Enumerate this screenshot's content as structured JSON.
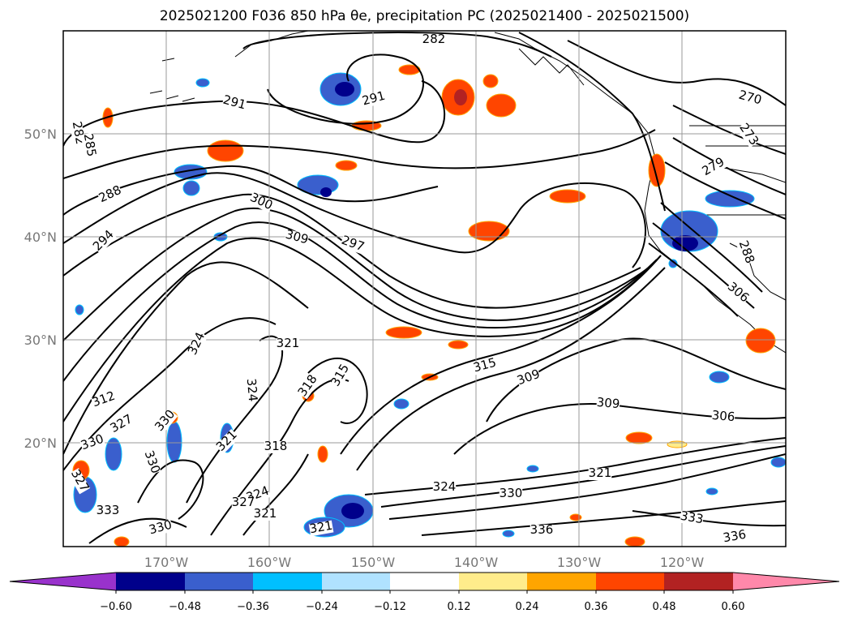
{
  "title": "2025021200 F036 850 hPa θe, precipitation PC (2025021400 - 2025021500)",
  "map": {
    "lon_range": [
      -180,
      -110
    ],
    "lat_range": [
      10,
      60
    ],
    "lat_ticks": [
      "50°N",
      "40°N",
      "30°N",
      "20°N"
    ],
    "lon_ticks": [
      "170°W",
      "160°W",
      "150°W",
      "140°W",
      "130°W",
      "120°W"
    ],
    "grid": true,
    "contour_labels": [
      "282",
      "291",
      "291",
      "282",
      "285",
      "288",
      "294",
      "300",
      "309",
      "297",
      "270",
      "273",
      "279",
      "288",
      "306",
      "324",
      "321",
      "324",
      "318",
      "312",
      "315",
      "327",
      "315",
      "309",
      "309",
      "306",
      "330",
      "330",
      "318",
      "321",
      "327",
      "324",
      "330",
      "321",
      "333",
      "336",
      "336",
      "321",
      "330",
      "324",
      "321",
      "327",
      "330",
      "333"
    ]
  },
  "colorbar": {
    "tick_labels": [
      "−0.60",
      "−0.48",
      "−0.36",
      "−0.24",
      "−0.12",
      "0.12",
      "0.24",
      "0.36",
      "0.48",
      "0.60"
    ],
    "colors": [
      "#9932cc",
      "#00008b",
      "#3a5fcd",
      "#00bfff",
      "#b0e2ff",
      "#ffffff",
      "#ffec8b",
      "#ffa500",
      "#ff4500",
      "#b22222",
      "#ff88aa"
    ]
  }
}
